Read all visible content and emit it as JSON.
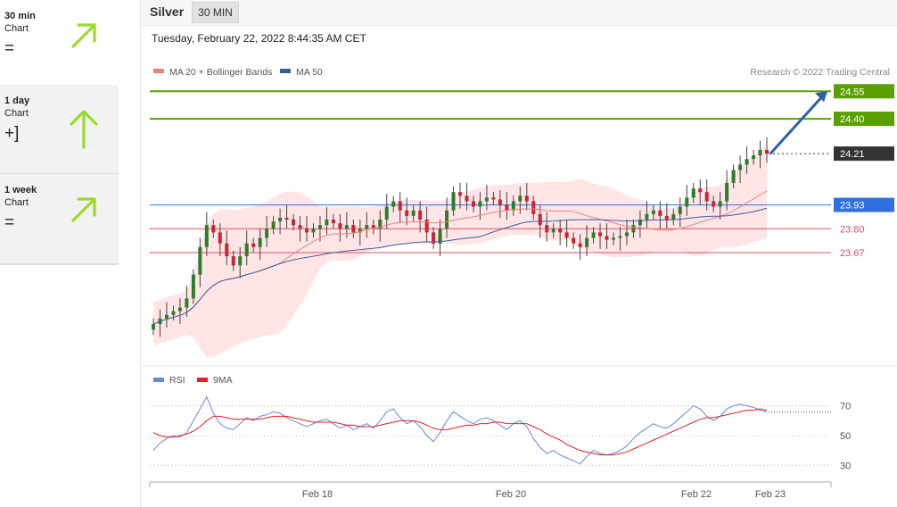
{
  "sidebar": {
    "items": [
      {
        "name": "30 min",
        "sub": "Chart",
        "symbol": "=",
        "arrow": "up-right"
      },
      {
        "name": "1 day",
        "sub": "Chart",
        "symbol": "+]",
        "arrow": "up"
      },
      {
        "name": "1 week",
        "sub": "Chart",
        "symbol": "=",
        "arrow": "up-right"
      }
    ]
  },
  "header": {
    "asset": "Silver",
    "interval": "30 MIN"
  },
  "timestamp": "Tuesday, February 22, 2022 8:44:35 AM CET",
  "copyright": "Research © 2022 Trading Central",
  "colors": {
    "arrow": "#9adb2a",
    "resistance": "#5aa000",
    "support": "#e05060",
    "pivot": "#2f6fe0",
    "ma50": "#3b5b9c",
    "ma20": "#f08080",
    "band": "#ffe0e0",
    "up_candle": "#2d7d2d",
    "down_candle": "#cc2233",
    "rsi": "#6688dd",
    "rsi_ma": "#dd2222"
  },
  "chart_data": [
    {
      "type": "candlestick",
      "legend": [
        {
          "name": "MA 20 + Bollinger Bands",
          "color": "#f08080"
        },
        {
          "name": "MA 50",
          "color": "#3b5b9c"
        }
      ],
      "ylim": [
        23.1,
        24.6
      ],
      "x_ticks": [
        "Feb 18",
        "Feb 20",
        "Feb 22",
        "Feb 23"
      ],
      "levels": [
        {
          "value": "24.55",
          "kind": "resistance"
        },
        {
          "value": "24.40",
          "kind": "resistance"
        },
        {
          "value": "24.21",
          "kind": "last"
        },
        {
          "value": "23.93",
          "kind": "pivot"
        },
        {
          "value": "23.80",
          "kind": "support"
        },
        {
          "value": "23.67",
          "kind": "support"
        }
      ],
      "target": 24.55,
      "closes": [
        23.28,
        23.31,
        23.33,
        23.35,
        23.37,
        23.42,
        23.55,
        23.7,
        23.82,
        23.78,
        23.72,
        23.65,
        23.6,
        23.65,
        23.72,
        23.7,
        23.75,
        23.8,
        23.84,
        23.86,
        23.85,
        23.82,
        23.8,
        23.78,
        23.8,
        23.82,
        23.85,
        23.83,
        23.8,
        23.82,
        23.78,
        23.8,
        23.82,
        23.8,
        23.85,
        23.92,
        23.95,
        23.9,
        23.87,
        23.9,
        23.85,
        23.78,
        23.72,
        23.8,
        23.9,
        24.0,
        23.98,
        23.95,
        23.92,
        23.95,
        23.97,
        23.96,
        23.93,
        23.9,
        23.95,
        23.98,
        23.95,
        23.88,
        23.82,
        23.78,
        23.8,
        23.78,
        23.75,
        23.72,
        23.7,
        23.75,
        23.78,
        23.76,
        23.74,
        23.75,
        23.76,
        23.78,
        23.82,
        23.85,
        23.88,
        23.9,
        23.87,
        23.85,
        23.88,
        23.92,
        23.97,
        24.02,
        24.0,
        23.95,
        23.92,
        23.95,
        24.05,
        24.12,
        24.15,
        24.18,
        24.2,
        24.23,
        24.21
      ]
    },
    {
      "type": "line",
      "legend": [
        {
          "name": "RSI",
          "color": "#6688dd"
        },
        {
          "name": "9MA",
          "color": "#dd2222"
        }
      ],
      "ylim": [
        20,
        80
      ],
      "y_ticks": [
        "70",
        "50",
        "30"
      ],
      "rsi": [
        40,
        45,
        48,
        50,
        49,
        52,
        60,
        68,
        76,
        65,
        58,
        55,
        54,
        58,
        62,
        60,
        63,
        64,
        66,
        65,
        62,
        60,
        58,
        56,
        58,
        60,
        61,
        58,
        55,
        57,
        54,
        56,
        58,
        55,
        60,
        66,
        68,
        62,
        58,
        60,
        56,
        50,
        46,
        52,
        60,
        66,
        63,
        60,
        58,
        61,
        62,
        60,
        57,
        54,
        58,
        60,
        56,
        48,
        42,
        38,
        40,
        37,
        35,
        33,
        31,
        36,
        40,
        38,
        37,
        38,
        40,
        43,
        48,
        52,
        55,
        58,
        56,
        55,
        58,
        62,
        66,
        70,
        68,
        63,
        60,
        63,
        68,
        70,
        71,
        70,
        69,
        67,
        66
      ],
      "rsi_ma": [
        52,
        50,
        49,
        49,
        50,
        51,
        53,
        56,
        60,
        63,
        63,
        62,
        61,
        61,
        61,
        61,
        61,
        62,
        63,
        63,
        63,
        62,
        61,
        60,
        59,
        59,
        59,
        59,
        58,
        57,
        57,
        56,
        56,
        56,
        57,
        58,
        59,
        60,
        60,
        60,
        59,
        57,
        55,
        54,
        54,
        55,
        56,
        57,
        57,
        58,
        58,
        59,
        59,
        58,
        58,
        58,
        58,
        56,
        54,
        51,
        49,
        47,
        44,
        42,
        40,
        39,
        38,
        37,
        37,
        37,
        38,
        39,
        41,
        43,
        45,
        47,
        49,
        51,
        53,
        55,
        57,
        59,
        61,
        62,
        62,
        63,
        64,
        65,
        66,
        67,
        67,
        68,
        67
      ]
    }
  ]
}
